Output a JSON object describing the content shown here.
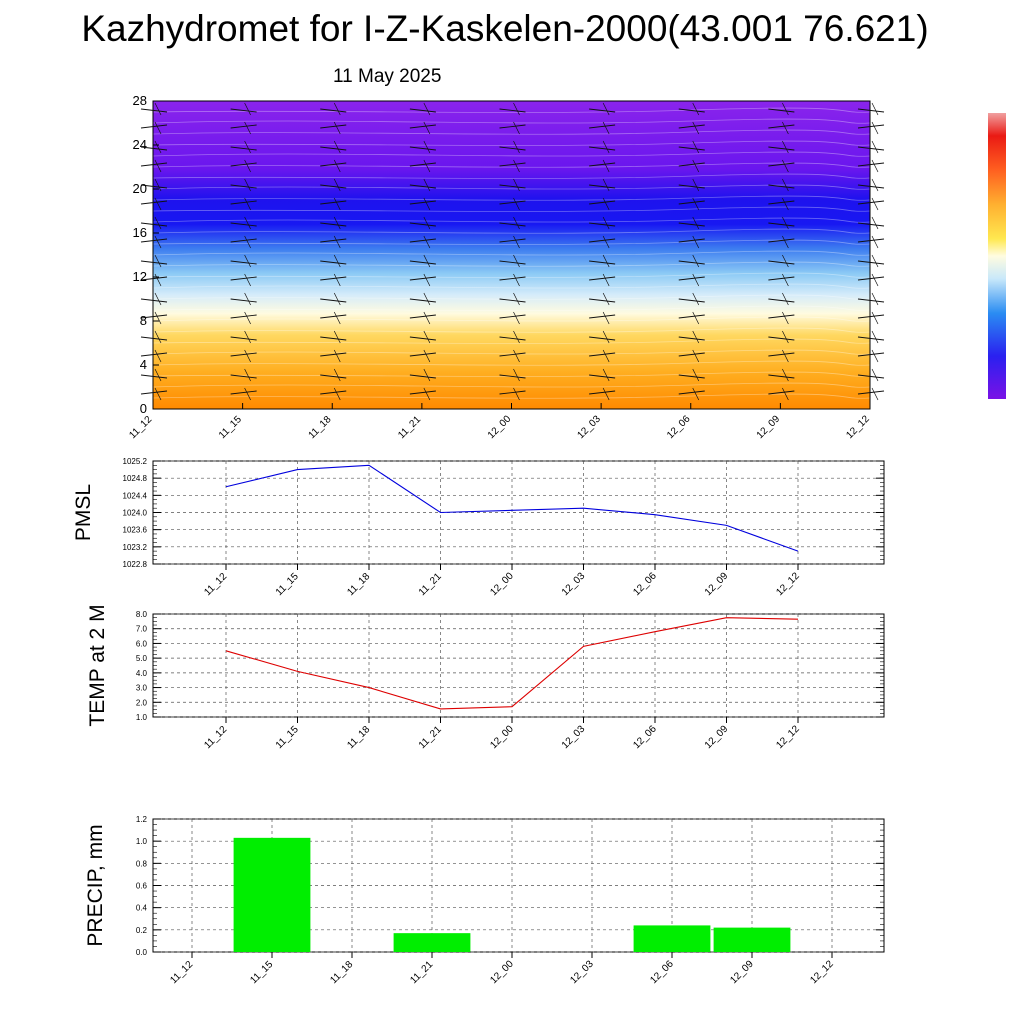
{
  "title": "Kazhydromet for I-Z-Kaskelen-2000(43.001 76.621)",
  "date": "11 May 2025",
  "colors": {
    "pmsl_line": "#0000dd",
    "temp_line": "#dd0000",
    "precip_bar": "#00ee00",
    "grid": "#555555"
  },
  "chart_data": [
    {
      "type": "heatmap",
      "name": "vertical-profile",
      "x_ticks": [
        "11_12",
        "11_15",
        "11_18",
        "11_21",
        "12_00",
        "12_03",
        "12_06",
        "12_09",
        "12_12"
      ],
      "y_ticks": [
        "0",
        "4",
        "8",
        "12",
        "16",
        "20",
        "24",
        "28"
      ],
      "ylim": [
        0,
        28
      ],
      "levels_y": [
        0,
        4,
        8,
        12,
        16,
        20,
        24,
        28
      ],
      "colorbar": [
        "#8a1ce6",
        "#6a10ee",
        "#1d10f0",
        "#3a7af0",
        "#9ad4f8",
        "#fefce8",
        "#fff38a",
        "#ffc850",
        "#ff9a30",
        "#ff6020",
        "#f02818",
        "#e81010"
      ]
    },
    {
      "type": "line",
      "name": "pmsl",
      "ylabel": "PMSL",
      "categories": [
        "11_12",
        "11_15",
        "11_18",
        "11_21",
        "12_00",
        "12_03",
        "12_06",
        "12_09",
        "12_12"
      ],
      "values": [
        1024.6,
        1025.0,
        1025.1,
        1024.0,
        1024.05,
        1024.1,
        1023.95,
        1023.7,
        1023.1
      ],
      "ylim": [
        1022.8,
        1025.2
      ],
      "y_ticks": [
        "1022.8",
        "1023.2",
        "1023.6",
        "1024.0",
        "1024.4",
        "1024.8",
        "1025.2"
      ]
    },
    {
      "type": "line",
      "name": "temp",
      "ylabel": "TEMP at 2 M",
      "categories": [
        "11_12",
        "11_15",
        "11_18",
        "11_21",
        "12_00",
        "12_03",
        "12_06",
        "12_09",
        "12_12"
      ],
      "values": [
        5.5,
        4.1,
        3.0,
        1.55,
        1.7,
        5.8,
        6.8,
        7.75,
        7.65
      ],
      "ylim": [
        1.0,
        8.0
      ],
      "y_ticks": [
        "1.0",
        "2.0",
        "3.0",
        "4.0",
        "5.0",
        "6.0",
        "7.0",
        "8.0"
      ]
    },
    {
      "type": "bar",
      "name": "precip",
      "ylabel": "PRECIP, mm",
      "categories": [
        "11_12",
        "11_15",
        "11_18",
        "11_21",
        "12_00",
        "12_03",
        "12_06",
        "12_09",
        "12_12"
      ],
      "values": [
        0,
        1.03,
        0,
        0.17,
        0,
        0,
        0.24,
        0.22,
        0
      ],
      "ylim": [
        0,
        1.2
      ],
      "y_ticks": [
        "0.0",
        "0.2",
        "0.4",
        "0.6",
        "0.8",
        "1.0",
        "1.2"
      ]
    }
  ]
}
